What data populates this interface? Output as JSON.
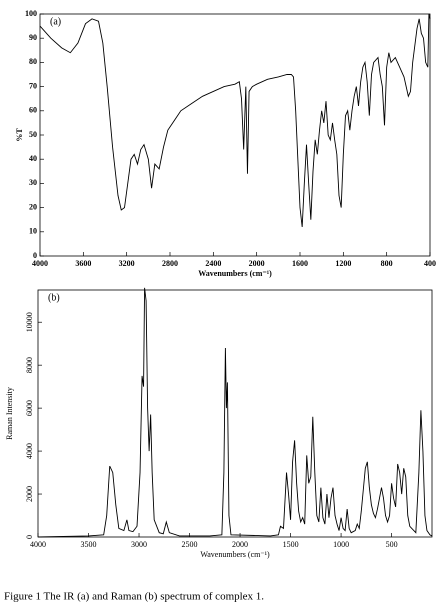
{
  "chart_data": [
    {
      "type": "line",
      "annotation": "(a)",
      "xlabel": "Wavenumbers (cm⁻¹)",
      "ylabel": "%T",
      "color": "#000000",
      "xlim": [
        4000,
        400
      ],
      "ylim": [
        0,
        100
      ],
      "xticks": [
        4000,
        3600,
        3200,
        2800,
        2400,
        2000,
        1600,
        1200,
        800,
        400
      ],
      "yticks": [
        0,
        10,
        20,
        30,
        40,
        50,
        60,
        70,
        80,
        90,
        100
      ],
      "x": [
        4000,
        3900,
        3800,
        3720,
        3650,
        3580,
        3520,
        3460,
        3420,
        3380,
        3330,
        3280,
        3250,
        3220,
        3190,
        3160,
        3130,
        3100,
        3070,
        3040,
        3000,
        2970,
        2940,
        2900,
        2860,
        2820,
        2760,
        2700,
        2600,
        2500,
        2400,
        2300,
        2200,
        2160,
        2140,
        2120,
        2100,
        2085,
        2070,
        2040,
        2000,
        1900,
        1800,
        1720,
        1680,
        1660,
        1640,
        1620,
        1600,
        1580,
        1560,
        1540,
        1520,
        1500,
        1480,
        1460,
        1440,
        1420,
        1400,
        1380,
        1360,
        1340,
        1320,
        1300,
        1280,
        1260,
        1240,
        1220,
        1200,
        1180,
        1160,
        1140,
        1120,
        1100,
        1080,
        1060,
        1040,
        1020,
        1000,
        980,
        960,
        940,
        920,
        880,
        860,
        840,
        820,
        800,
        780,
        760,
        720,
        680,
        640,
        600,
        580,
        560,
        520,
        500,
        480,
        460,
        440,
        420,
        410,
        400
      ],
      "values": [
        95,
        90,
        86,
        84,
        88,
        96,
        98,
        97,
        88,
        70,
        45,
        25,
        19,
        20,
        30,
        40,
        42,
        38,
        44,
        46,
        40,
        28,
        38,
        36,
        45,
        52,
        56,
        60,
        63,
        66,
        68,
        70,
        71,
        72,
        65,
        44,
        70,
        34,
        68,
        70,
        71,
        73,
        74,
        75,
        75,
        74,
        60,
        40,
        20,
        12,
        30,
        46,
        30,
        15,
        35,
        48,
        42,
        52,
        60,
        55,
        64,
        50,
        48,
        55,
        48,
        42,
        25,
        20,
        42,
        58,
        60,
        52,
        60,
        66,
        70,
        62,
        72,
        78,
        80,
        72,
        58,
        75,
        80,
        82,
        75,
        70,
        54,
        78,
        84,
        80,
        82,
        78,
        74,
        66,
        68,
        80,
        94,
        98,
        92,
        90,
        80,
        78,
        100,
        98
      ]
    },
    {
      "type": "line",
      "annotation": "(b)",
      "xlabel": "Wavenumbers (cm⁻¹)",
      "ylabel": "Raman Intensity",
      "color": "#000000",
      "xlim": [
        4000,
        100
      ],
      "ylim": [
        0,
        11500
      ],
      "xticks": [
        4000,
        3500,
        3000,
        2500,
        2000,
        1500,
        1000,
        500
      ],
      "yticks": [
        0,
        2000,
        4000,
        6000,
        8000,
        10000
      ],
      "x": [
        4000,
        3500,
        3350,
        3320,
        3290,
        3260,
        3230,
        3200,
        3150,
        3120,
        3100,
        3060,
        3020,
        2990,
        2970,
        2955,
        2945,
        2930,
        2915,
        2900,
        2885,
        2870,
        2850,
        2800,
        2760,
        2730,
        2700,
        2600,
        2300,
        2180,
        2160,
        2145,
        2135,
        2125,
        2110,
        2090,
        1700,
        1620,
        1600,
        1570,
        1540,
        1520,
        1500,
        1480,
        1460,
        1440,
        1420,
        1400,
        1380,
        1360,
        1340,
        1320,
        1300,
        1280,
        1260,
        1240,
        1220,
        1200,
        1180,
        1160,
        1140,
        1120,
        1100,
        1080,
        1060,
        1040,
        1020,
        1000,
        980,
        960,
        940,
        920,
        900,
        860,
        840,
        820,
        800,
        780,
        760,
        740,
        720,
        700,
        680,
        660,
        640,
        620,
        600,
        580,
        560,
        540,
        520,
        500,
        480,
        460,
        440,
        420,
        400,
        380,
        360,
        340,
        320,
        300,
        260,
        230,
        210,
        190,
        170,
        150,
        120,
        100
      ],
      "values": [
        0,
        50,
        100,
        1000,
        3300,
        3000,
        1500,
        400,
        300,
        800,
        300,
        250,
        500,
        3000,
        7500,
        7000,
        11600,
        11000,
        6000,
        4000,
        5700,
        3000,
        800,
        200,
        150,
        700,
        200,
        50,
        50,
        100,
        3000,
        8800,
        6000,
        7200,
        1000,
        100,
        50,
        100,
        500,
        400,
        3000,
        2000,
        800,
        3500,
        4500,
        2500,
        1200,
        700,
        900,
        600,
        3800,
        2500,
        2800,
        5600,
        3000,
        1000,
        700,
        2300,
        900,
        600,
        2000,
        900,
        1800,
        2300,
        1000,
        600,
        300,
        900,
        400,
        300,
        1300,
        400,
        200,
        300,
        600,
        400,
        1200,
        2200,
        3200,
        3500,
        2300,
        1500,
        1100,
        900,
        1300,
        1800,
        2300,
        1800,
        1000,
        700,
        1000,
        2500,
        1800,
        1400,
        3400,
        3000,
        2000,
        3200,
        2800,
        1000,
        500,
        400,
        200,
        3000,
        5900,
        4000,
        1000,
        300,
        100,
        50
      ]
    }
  ],
  "caption": "Figure 1 The IR (a) and Raman (b) spectrum of complex 1."
}
